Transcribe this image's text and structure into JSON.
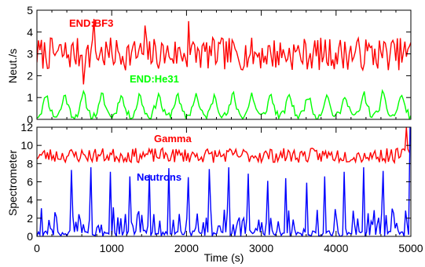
{
  "chart_data": [
    {
      "type": "line",
      "panel": "top",
      "ylabel": "Neut./s",
      "xlabel": "",
      "xlim": [
        0,
        5000
      ],
      "ylim": [
        0,
        5
      ],
      "yticks": [
        0,
        1,
        2,
        3,
        4,
        5
      ],
      "xticks": [
        0,
        1000,
        2000,
        3000,
        4000,
        5000
      ],
      "series": [
        {
          "name": "END:BF3",
          "color": "#ff0000",
          "baseline": 3.0,
          "noise_amplitude": 0.75,
          "x_start": 0,
          "x_end": 5000,
          "n_points": 250,
          "seed": 7,
          "spikes": [
            {
              "x": 760,
              "y": 4.6
            },
            {
              "x": 2030,
              "y": 4.5
            },
            {
              "x": 1450,
              "y": 4.3
            },
            {
              "x": 620,
              "y": 1.6
            }
          ]
        },
        {
          "name": "END:He31",
          "color": "#00ff00",
          "baseline": 0.15,
          "peak_height": 1.1,
          "period": 250,
          "x_start": 0,
          "x_end": 5000,
          "n_points": 250,
          "seed": 11
        }
      ]
    },
    {
      "type": "line",
      "panel": "bottom",
      "ylabel": "Spectrometer",
      "xlabel": "Time (s)",
      "xlim": [
        0,
        5000
      ],
      "ylim": [
        0,
        12
      ],
      "yticks": [
        0,
        2,
        4,
        6,
        8,
        10,
        12
      ],
      "xticks": [
        0,
        1000,
        2000,
        3000,
        4000,
        5000
      ],
      "series": [
        {
          "name": "Gamma",
          "color": "#ff0000",
          "baseline": 8.9,
          "noise_amplitude": 0.8,
          "x_start": 0,
          "x_end": 4980,
          "n_points": 250,
          "seed": 23,
          "spikes": [
            {
              "x": 4950,
              "y": 12.0
            }
          ]
        },
        {
          "name": "Neutrons",
          "color": "#0000ff",
          "baseline": 0.8,
          "noise_amplitude": 1.0,
          "x_start": 0,
          "x_end": 4990,
          "n_points": 250,
          "seed": 31,
          "spikes": [
            {
              "x": 460,
              "y": 7.3
            },
            {
              "x": 720,
              "y": 7.6
            },
            {
              "x": 980,
              "y": 7.1
            },
            {
              "x": 1250,
              "y": 6.6
            },
            {
              "x": 1500,
              "y": 6.8
            },
            {
              "x": 1760,
              "y": 7.5
            },
            {
              "x": 2020,
              "y": 6.5
            },
            {
              "x": 2300,
              "y": 7.4
            },
            {
              "x": 2560,
              "y": 7.6
            },
            {
              "x": 2830,
              "y": 6.9
            },
            {
              "x": 3080,
              "y": 6.1
            },
            {
              "x": 3330,
              "y": 6.4
            },
            {
              "x": 3600,
              "y": 5.9
            },
            {
              "x": 3850,
              "y": 6.6
            },
            {
              "x": 4100,
              "y": 7.1
            },
            {
              "x": 4360,
              "y": 7.6
            },
            {
              "x": 4620,
              "y": 7.2
            },
            {
              "x": 4980,
              "y": 12.0
            }
          ]
        }
      ]
    }
  ]
}
